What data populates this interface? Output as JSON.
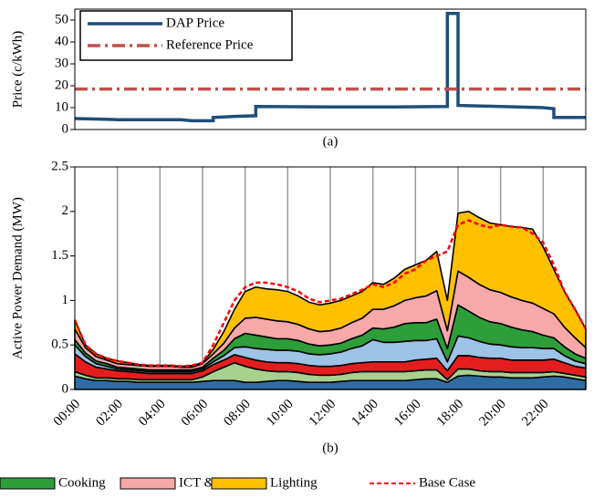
{
  "chart_data": [
    {
      "type": "line",
      "panel_label": "(a)",
      "y_label": "Price (c/kWh)",
      "xlim": [
        0,
        24
      ],
      "ylim": [
        0,
        55
      ],
      "yticks": [
        0,
        10,
        20,
        30,
        40,
        50
      ],
      "legend": "upper left",
      "x": [
        0,
        1,
        2,
        3,
        4,
        5,
        5.5,
        6.5,
        6.5,
        7.5,
        8.5,
        8.5,
        12,
        15,
        17.5,
        17.5,
        18,
        18,
        20,
        22,
        22.5,
        22.5,
        24
      ],
      "series": [
        {
          "name": "DAP Price",
          "color": "#1f4e79",
          "dash": "solid",
          "values": [
            5,
            4.8,
            4.5,
            4.5,
            4.5,
            4.5,
            4,
            4,
            5.5,
            6,
            6.3,
            10.5,
            10.3,
            10.3,
            10.5,
            53,
            53,
            11,
            10.5,
            10,
            9.5,
            5.5,
            5.5
          ]
        },
        {
          "name": "Reference Price",
          "color": "#c0504d",
          "dash": "dashdot",
          "values": [
            18.5,
            18.5,
            18.5,
            18.5,
            18.5,
            18.5,
            18.5,
            18.5,
            18.5,
            18.5,
            18.5,
            18.5,
            18.5,
            18.5,
            18.5,
            18.5,
            18.5,
            18.5,
            18.5,
            18.5,
            18.5,
            18.5,
            18.5
          ]
        }
      ]
    },
    {
      "type": "area",
      "stacked": true,
      "panel_label": "(b)",
      "y_label": "Active Power Demand (MW)",
      "xlim": [
        0,
        24
      ],
      "ylim": [
        0,
        2.5
      ],
      "yticks": [
        0,
        0.5,
        1,
        1.5,
        2,
        2.5
      ],
      "grid": "vertical",
      "legend": "below",
      "xticks": [
        {
          "value": 0,
          "label": "00:00"
        },
        {
          "value": 2,
          "label": "02:00"
        },
        {
          "value": 4,
          "label": "04:00"
        },
        {
          "value": 6,
          "label": "06:00"
        },
        {
          "value": 8,
          "label": "08:00"
        },
        {
          "value": 10,
          "label": "10:00"
        },
        {
          "value": 12,
          "label": "12:00"
        },
        {
          "value": 14,
          "label": "14:00"
        },
        {
          "value": 16,
          "label": "16:00"
        },
        {
          "value": 18,
          "label": "18:00"
        },
        {
          "value": 20,
          "label": "20:00"
        },
        {
          "value": 22,
          "label": "22:00"
        }
      ],
      "x": [
        0,
        0.5,
        1,
        1.5,
        2,
        2.5,
        3,
        3.5,
        4,
        4.5,
        5,
        5.5,
        6,
        6.5,
        7,
        7.5,
        8,
        8.5,
        9,
        9.5,
        10,
        10.5,
        11,
        11.5,
        12,
        12.5,
        13,
        13.5,
        14,
        14.5,
        15,
        15.5,
        16,
        16.5,
        17,
        17.5,
        18,
        18.5,
        19,
        19.5,
        20,
        20.5,
        21,
        21.5,
        22,
        22.5,
        23,
        23.5,
        24
      ],
      "series": [
        {
          "color": "#2e6da4",
          "values": [
            0.15,
            0.12,
            0.1,
            0.1,
            0.09,
            0.09,
            0.08,
            0.08,
            0.08,
            0.08,
            0.08,
            0.08,
            0.09,
            0.1,
            0.1,
            0.1,
            0.08,
            0.08,
            0.09,
            0.1,
            0.1,
            0.09,
            0.08,
            0.08,
            0.08,
            0.09,
            0.1,
            0.1,
            0.1,
            0.1,
            0.1,
            0.1,
            0.11,
            0.12,
            0.12,
            0.08,
            0.15,
            0.16,
            0.15,
            0.14,
            0.14,
            0.13,
            0.13,
            0.13,
            0.14,
            0.15,
            0.14,
            0.12,
            0.1
          ]
        },
        {
          "color": "#a9d18e",
          "values": [
            0.05,
            0.04,
            0.03,
            0.03,
            0.03,
            0.03,
            0.03,
            0.03,
            0.03,
            0.03,
            0.03,
            0.03,
            0.05,
            0.1,
            0.15,
            0.2,
            0.18,
            0.15,
            0.12,
            0.1,
            0.1,
            0.1,
            0.09,
            0.08,
            0.08,
            0.08,
            0.09,
            0.1,
            0.1,
            0.1,
            0.1,
            0.1,
            0.1,
            0.1,
            0.1,
            0.03,
            0.08,
            0.07,
            0.06,
            0.06,
            0.06,
            0.06,
            0.06,
            0.06,
            0.05,
            0.05,
            0.04,
            0.04,
            0.04
          ]
        },
        {
          "color": "#e41e1e",
          "values": [
            0.2,
            0.15,
            0.12,
            0.1,
            0.09,
            0.08,
            0.08,
            0.07,
            0.07,
            0.07,
            0.07,
            0.07,
            0.07,
            0.08,
            0.08,
            0.09,
            0.1,
            0.1,
            0.1,
            0.1,
            0.1,
            0.1,
            0.1,
            0.1,
            0.1,
            0.1,
            0.1,
            0.1,
            0.11,
            0.11,
            0.11,
            0.11,
            0.12,
            0.12,
            0.13,
            0.1,
            0.15,
            0.15,
            0.15,
            0.15,
            0.15,
            0.14,
            0.14,
            0.14,
            0.14,
            0.14,
            0.12,
            0.1,
            0.1
          ]
        },
        {
          "color": "#9dc3e6",
          "values": [
            0.1,
            0.06,
            0.04,
            0.03,
            0.02,
            0.02,
            0.02,
            0.02,
            0.02,
            0.02,
            0.02,
            0.02,
            0.02,
            0.03,
            0.05,
            0.08,
            0.12,
            0.13,
            0.14,
            0.14,
            0.14,
            0.14,
            0.13,
            0.13,
            0.14,
            0.15,
            0.17,
            0.19,
            0.25,
            0.22,
            0.22,
            0.23,
            0.22,
            0.21,
            0.22,
            0.1,
            0.22,
            0.2,
            0.18,
            0.16,
            0.15,
            0.15,
            0.14,
            0.14,
            0.13,
            0.12,
            0.08,
            0.06,
            0.05
          ]
        },
        {
          "name": "Cooking",
          "color": "#2e9e3a",
          "values": [
            0.06,
            0.04,
            0.03,
            0.03,
            0.02,
            0.02,
            0.02,
            0.02,
            0.02,
            0.02,
            0.02,
            0.02,
            0.02,
            0.04,
            0.06,
            0.1,
            0.15,
            0.15,
            0.14,
            0.13,
            0.13,
            0.12,
            0.11,
            0.1,
            0.1,
            0.1,
            0.11,
            0.12,
            0.13,
            0.15,
            0.17,
            0.2,
            0.2,
            0.2,
            0.22,
            0.15,
            0.35,
            0.3,
            0.27,
            0.25,
            0.24,
            0.22,
            0.2,
            0.18,
            0.15,
            0.12,
            0.1,
            0.08,
            0.06
          ]
        },
        {
          "name": "ICT & CE",
          "color": "#f7a8a8",
          "values": [
            0.12,
            0.06,
            0.05,
            0.04,
            0.04,
            0.04,
            0.04,
            0.04,
            0.04,
            0.04,
            0.03,
            0.03,
            0.04,
            0.05,
            0.08,
            0.12,
            0.17,
            0.2,
            0.2,
            0.2,
            0.19,
            0.18,
            0.17,
            0.16,
            0.16,
            0.17,
            0.18,
            0.19,
            0.21,
            0.22,
            0.24,
            0.26,
            0.28,
            0.3,
            0.32,
            0.2,
            0.38,
            0.38,
            0.37,
            0.36,
            0.35,
            0.34,
            0.33,
            0.32,
            0.3,
            0.27,
            0.22,
            0.18,
            0.12
          ]
        },
        {
          "name": "Lighting",
          "color": "#ffc000",
          "values": [
            0.1,
            0.03,
            0.03,
            0.02,
            0.03,
            0.02,
            0.01,
            0.01,
            0.01,
            0.01,
            0.01,
            0.02,
            0.01,
            0.05,
            0.13,
            0.21,
            0.3,
            0.34,
            0.34,
            0.35,
            0.34,
            0.32,
            0.3,
            0.3,
            0.31,
            0.31,
            0.3,
            0.3,
            0.3,
            0.28,
            0.31,
            0.35,
            0.37,
            0.4,
            0.44,
            0.34,
            0.65,
            0.74,
            0.75,
            0.75,
            0.76,
            0.79,
            0.82,
            0.83,
            0.69,
            0.5,
            0.4,
            0.32,
            0.21
          ]
        },
        {
          "name": "Base Case",
          "color": "#ff0000",
          "type": "line",
          "dash": "dashed",
          "values": [
            0.78,
            0.5,
            0.4,
            0.35,
            0.32,
            0.3,
            0.28,
            0.27,
            0.27,
            0.27,
            0.26,
            0.27,
            0.3,
            0.5,
            0.75,
            1.0,
            1.15,
            1.2,
            1.2,
            1.18,
            1.15,
            1.1,
            1.02,
            0.98,
            1.0,
            1.02,
            1.07,
            1.12,
            1.18,
            1.15,
            1.2,
            1.3,
            1.35,
            1.45,
            1.5,
            1.55,
            1.85,
            1.9,
            1.85,
            1.82,
            1.85,
            1.83,
            1.82,
            1.75,
            1.65,
            1.4,
            1.1,
            0.9,
            0.68
          ]
        }
      ]
    }
  ]
}
